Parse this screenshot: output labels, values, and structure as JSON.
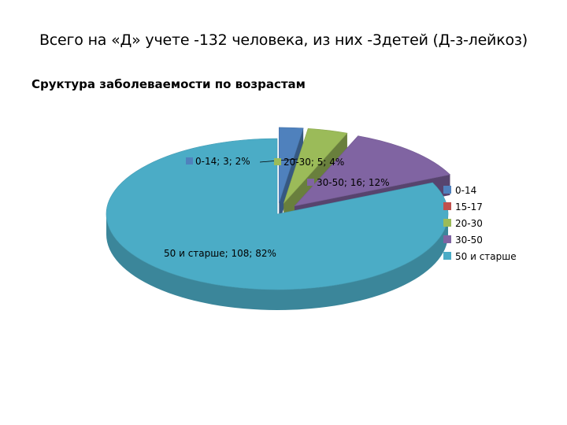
{
  "slide": {
    "title": "Всего на «Д» учете -132 человека, из них -3детей (Д-з-лейкоз)"
  },
  "chart_data": {
    "type": "pie",
    "title": "Сруктура заболеваемости по возрастам",
    "style": "3d-exploded",
    "legend_position": "right",
    "categories": [
      "0-14",
      "15-17",
      "20-30",
      "30-50",
      "50 и старше"
    ],
    "values": [
      3,
      0,
      5,
      16,
      108
    ],
    "percents": [
      2,
      0,
      4,
      12,
      82
    ],
    "colors": [
      "#4F81BD",
      "#C0504D",
      "#9BBB59",
      "#8064A2",
      "#4BACC6"
    ],
    "data_labels": [
      {
        "category": "0-14",
        "text": "0-14; 3; 2%"
      },
      {
        "category": "20-30",
        "text": "20-30; 5; 4%"
      },
      {
        "category": "30-50",
        "text": "30-50; 16; 12%"
      },
      {
        "category": "50 и старше",
        "text": "50 и старше; 108; 82%"
      }
    ]
  }
}
